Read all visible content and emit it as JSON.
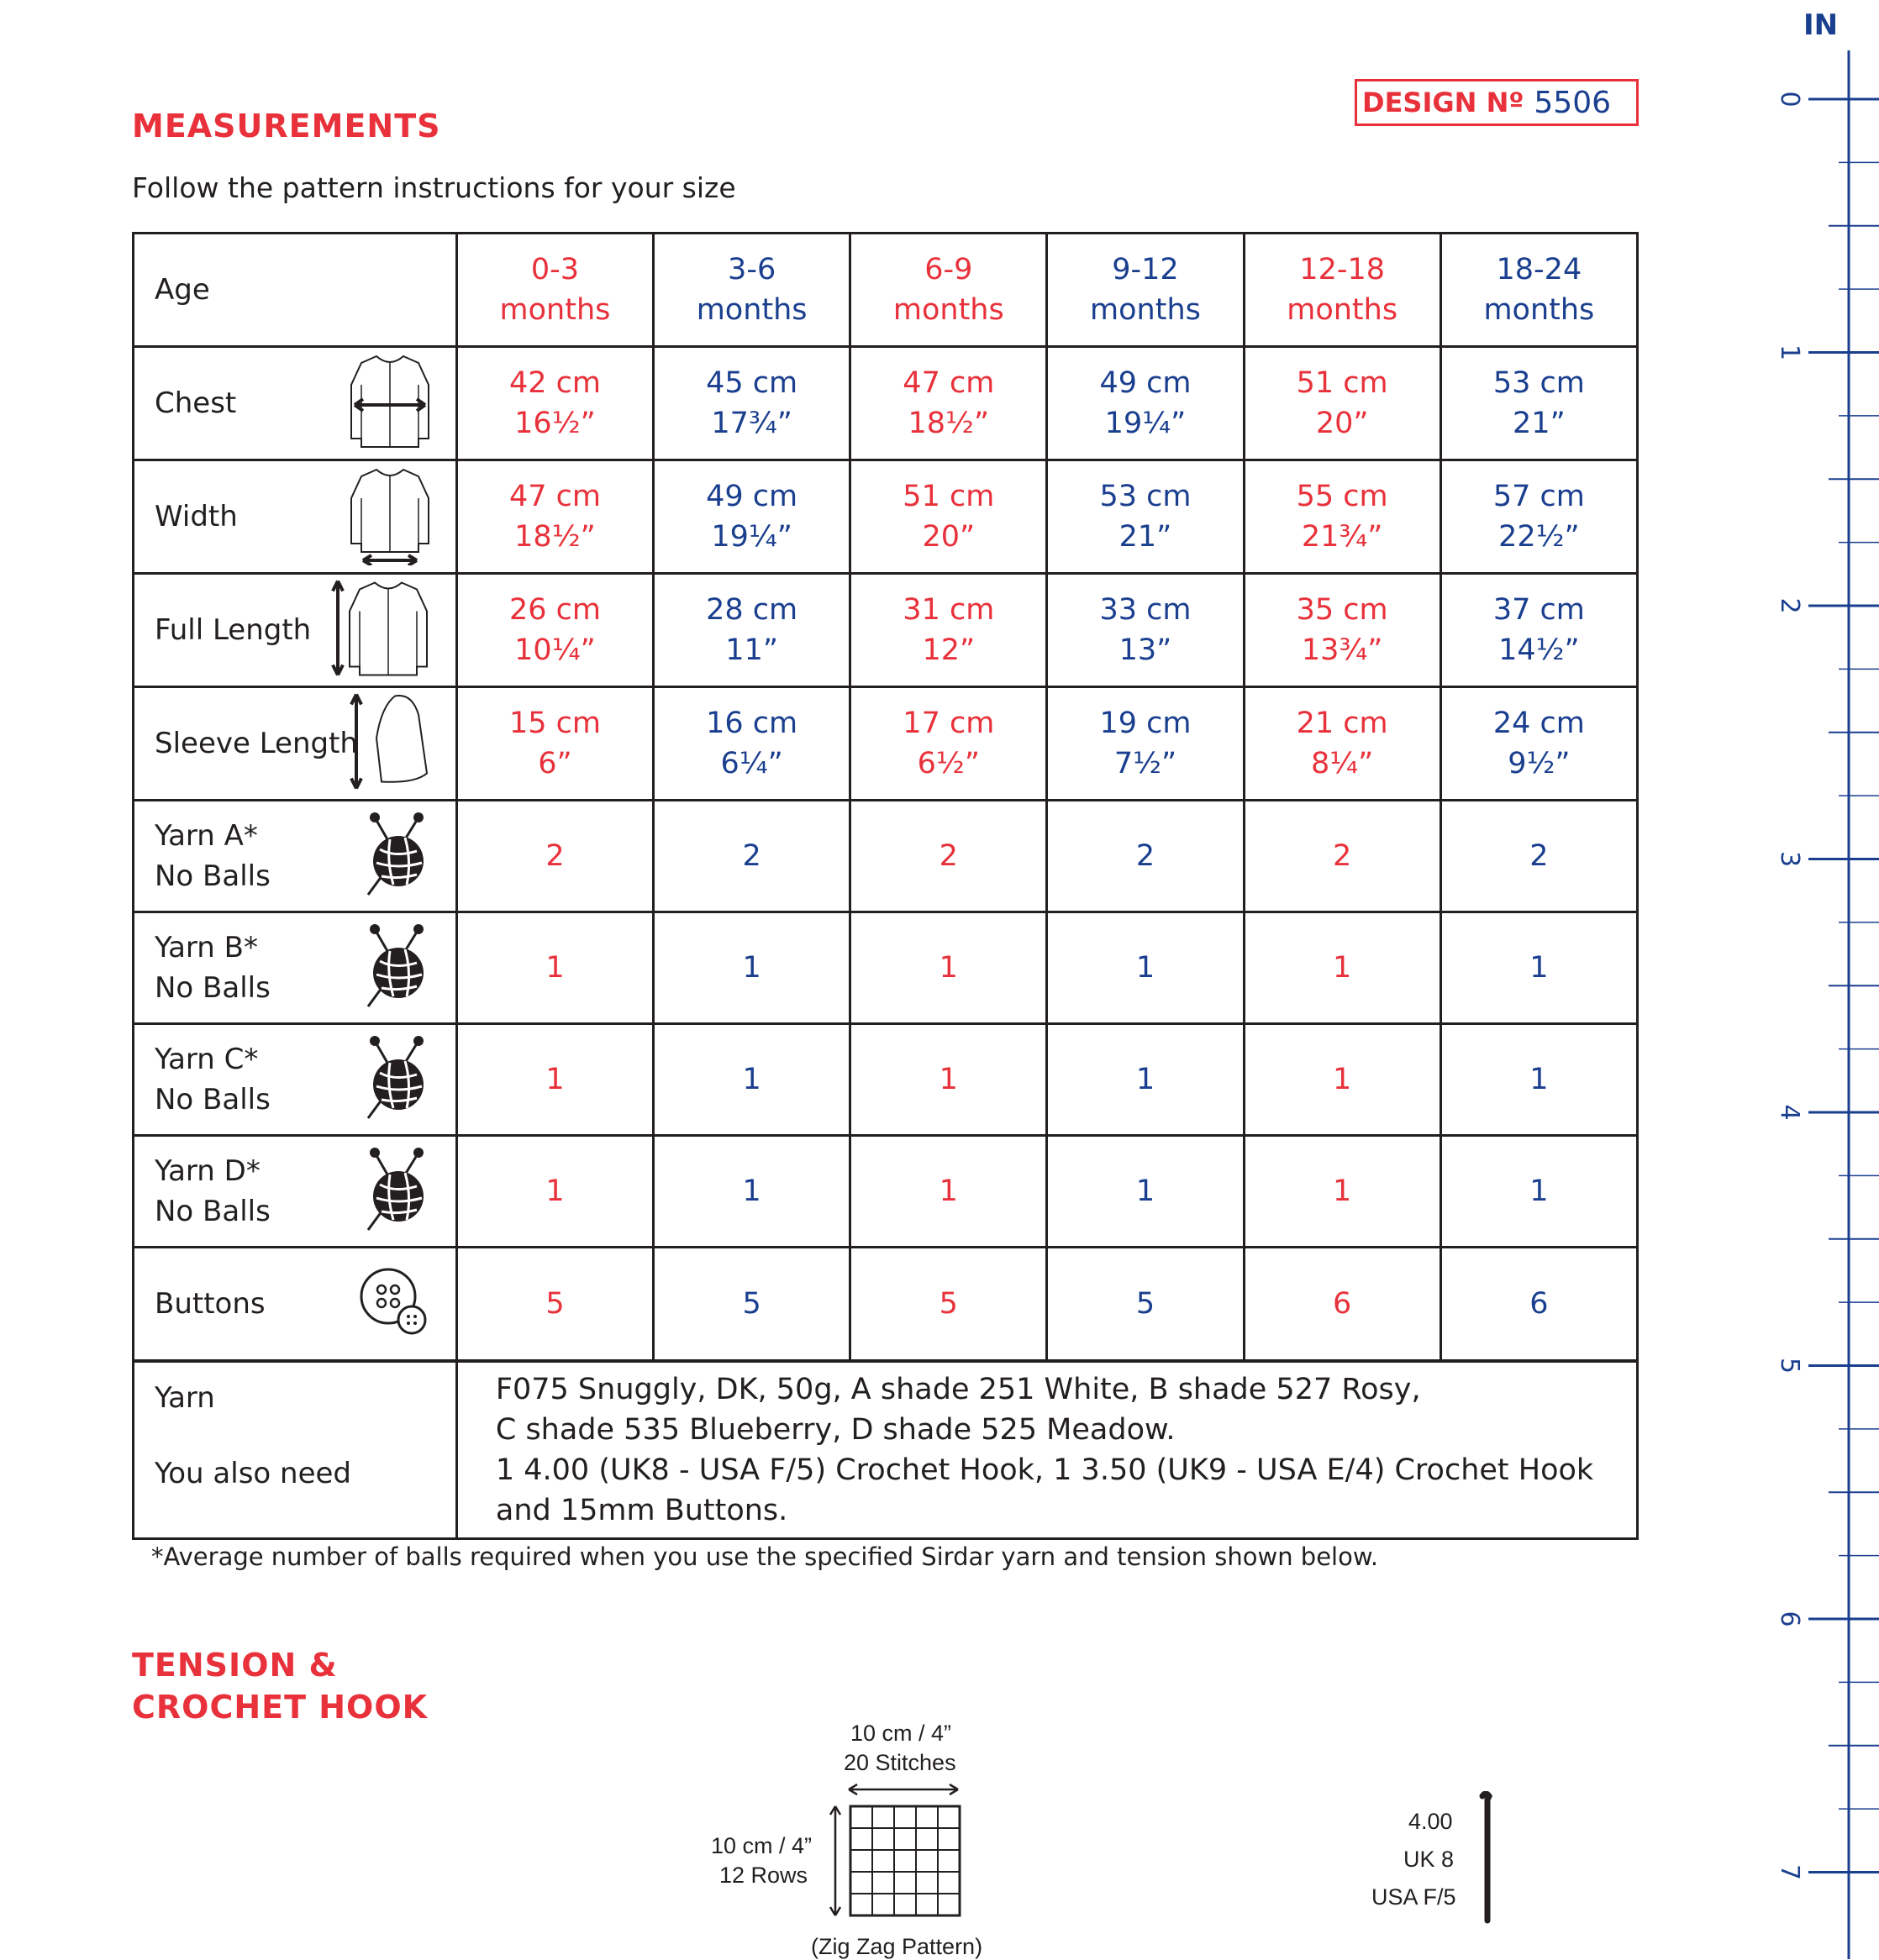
{
  "header": {
    "section_title": "MEASUREMENTS",
    "design_label": "DESIGN Nº",
    "design_number": "5506",
    "subtitle": "Follow the pattern instructions for your size"
  },
  "table": {
    "rows": [
      {
        "label": "Age",
        "icon": "none",
        "values": [
          "0-3\nmonths",
          "3-6\nmonths",
          "6-9\nmonths",
          "9-12\nmonths",
          "12-18\nmonths",
          "18-24\nmonths"
        ]
      },
      {
        "label": "Chest",
        "icon": "cardigan-chest-icon",
        "values": [
          "42 cm\n16½”",
          "45 cm\n17¾”",
          "47 cm\n18½”",
          "49 cm\n19¼”",
          "51 cm\n20”",
          "53 cm\n21”"
        ]
      },
      {
        "label": "Width",
        "icon": "cardigan-width-icon",
        "values": [
          "47 cm\n18½”",
          "49 cm\n19¼”",
          "51 cm\n20”",
          "53 cm\n21”",
          "55 cm\n21¾”",
          "57 cm\n22½”"
        ]
      },
      {
        "label": "Full Length",
        "icon": "cardigan-length-icon",
        "values": [
          "26 cm\n10¼”",
          "28 cm\n11”",
          "31 cm\n12”",
          "33 cm\n13”",
          "35 cm\n13¾”",
          "37 cm\n14½”"
        ]
      },
      {
        "label": "Sleeve Length",
        "icon": "sleeve-length-icon",
        "values": [
          "15 cm\n6”",
          "16 cm\n6¼”",
          "17 cm\n6½”",
          "19 cm\n7½”",
          "21 cm\n8¼”",
          "24 cm\n9½”"
        ]
      },
      {
        "label": "Yarn A*\nNo Balls",
        "icon": "yarn-ball-icon",
        "values": [
          "2",
          "2",
          "2",
          "2",
          "2",
          "2"
        ]
      },
      {
        "label": "Yarn B*\nNo Balls",
        "icon": "yarn-ball-icon",
        "values": [
          "1",
          "1",
          "1",
          "1",
          "1",
          "1"
        ]
      },
      {
        "label": "Yarn C*\nNo Balls",
        "icon": "yarn-ball-icon",
        "values": [
          "1",
          "1",
          "1",
          "1",
          "1",
          "1"
        ]
      },
      {
        "label": "Yarn D*\nNo Balls",
        "icon": "yarn-ball-icon",
        "values": [
          "1",
          "1",
          "1",
          "1",
          "1",
          "1"
        ]
      },
      {
        "label": "Buttons",
        "icon": "button-icon",
        "values": [
          "5",
          "5",
          "5",
          "5",
          "6",
          "6"
        ]
      }
    ],
    "yarn_label": "Yarn",
    "also_need_label": "You also need",
    "yarn_text_1": "F075 Snuggly, DK, 50g, A shade 251 White, B shade 527 Rosy,",
    "yarn_text_2": "C shade 535 Blueberry, D shade 525 Meadow.",
    "also_text_1": "1 4.00 (UK8 - USA F/5) Crochet Hook, 1 3.50 (UK9 - USA E/4) Crochet Hook",
    "also_text_2": "and 15mm Buttons."
  },
  "footnote": "*Average number of balls required when you use the specified Sirdar yarn and tension shown below.",
  "tension": {
    "title_line1": "TENSION &",
    "title_line2": "CROCHET HOOK",
    "width_measure": "10 cm / 4”",
    "stitches": "20 Stitches",
    "height_measure": "10 cm / 4”",
    "rows": "12 Rows",
    "pattern": "(Zig Zag Pattern)",
    "hook_size": "4.00",
    "hook_uk": "UK 8",
    "hook_usa": "USA F/5"
  },
  "ruler": {
    "unit": "IN",
    "numbers": [
      "0",
      "1",
      "2",
      "3",
      "4",
      "5",
      "6",
      "7"
    ]
  },
  "colors": {
    "accent_red": "#e8313a",
    "accent_blue": "#1a3f8f"
  }
}
